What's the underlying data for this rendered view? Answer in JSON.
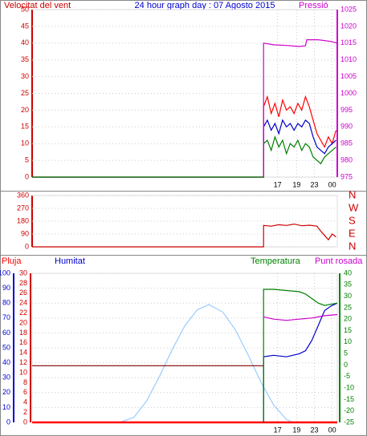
{
  "chart_data": [
    {
      "type": "line",
      "title": "24 hour graph day : 07 Agosto 2015",
      "y_label": "Velocitat del vent",
      "y2_label": "Pressió",
      "xlim": [
        0,
        24
      ],
      "xticks": [
        {
          "value": 19.3,
          "label": "17"
        },
        {
          "value": 20.8,
          "label": "19"
        },
        {
          "value": 22.2,
          "label": "23"
        },
        {
          "value": 23.6,
          "label": "00"
        }
      ],
      "ylim": [
        0,
        50
      ],
      "yticks": [
        0,
        5,
        10,
        15,
        20,
        25,
        30,
        35,
        40,
        45,
        50
      ],
      "ycolor": "#cc0000",
      "y2lim": [
        975,
        1025
      ],
      "y2ticks": [
        975,
        980,
        985,
        990,
        995,
        1000,
        1005,
        1010,
        1015,
        1020,
        1025
      ],
      "y2color": "#cc00cc",
      "grid": true,
      "series": [
        {
          "color": "#ff0000",
          "x": [
            0,
            18.2,
            18.2,
            18.5,
            18.8,
            19.1,
            19.4,
            19.7,
            20.0,
            20.3,
            20.6,
            20.9,
            21.2,
            21.5,
            21.8,
            22.1,
            22.4,
            22.7,
            23.0,
            23.3,
            23.6,
            23.9
          ],
          "values": [
            0,
            0,
            21,
            24,
            19,
            22,
            18,
            23,
            20,
            21,
            19,
            22,
            20,
            24,
            21,
            17,
            13,
            11,
            9,
            12,
            10,
            14
          ]
        },
        {
          "color": "#0000cc",
          "x": [
            0,
            18.2,
            18.2,
            18.5,
            18.8,
            19.1,
            19.4,
            19.7,
            20.0,
            20.3,
            20.6,
            20.9,
            21.2,
            21.5,
            21.8,
            22.1,
            22.4,
            22.7,
            23.0,
            23.3,
            23.6,
            23.9
          ],
          "values": [
            0,
            0,
            15,
            17,
            14,
            16,
            13,
            17,
            15,
            16,
            14,
            16,
            15,
            17,
            16,
            12,
            9,
            8,
            7,
            9,
            10,
            11
          ]
        },
        {
          "color": "#008000",
          "x": [
            0,
            18.2,
            18.2,
            18.5,
            18.8,
            19.1,
            19.4,
            19.7,
            20.0,
            20.3,
            20.6,
            20.9,
            21.2,
            21.5,
            21.8,
            22.1,
            22.4,
            22.7,
            23.0,
            23.3,
            23.6,
            23.9
          ],
          "values": [
            0,
            0,
            10,
            11,
            8,
            12,
            9,
            11,
            7,
            10,
            9,
            11,
            8,
            10,
            9,
            6,
            5,
            4,
            6,
            7,
            8,
            9
          ]
        },
        {
          "color": "#cc00cc",
          "axis": "y2",
          "x": [
            18.2,
            18.2,
            19,
            20,
            21,
            21.5,
            21.6,
            22.5,
            23.5,
            24
          ],
          "values": [
            975,
            1015,
            1014.5,
            1014.3,
            1014,
            1014.2,
            1016,
            1016,
            1015.5,
            1015
          ]
        }
      ]
    },
    {
      "type": "line",
      "xlim": [
        0,
        24
      ],
      "ylim": [
        0,
        360
      ],
      "yticks": [
        0,
        90,
        180,
        270,
        360
      ],
      "ycolor": "#cc0000",
      "y2lim": [
        0,
        360
      ],
      "y2ticks": [
        {
          "value": 0,
          "label": "N"
        },
        {
          "value": 90,
          "label": "E"
        },
        {
          "value": 180,
          "label": "S"
        },
        {
          "value": 270,
          "label": "W"
        },
        {
          "value": 360,
          "label": "N"
        }
      ],
      "y2color": "#cc0000",
      "grid": true,
      "series": [
        {
          "color": "#cc0000",
          "x": [
            0,
            18.2,
            18.2,
            18.8,
            19.4,
            20,
            20.6,
            21.2,
            21.8,
            22.4,
            22.7,
            23,
            23.3,
            23.6,
            23.9
          ],
          "values": [
            0,
            0,
            150,
            145,
            155,
            150,
            160,
            148,
            152,
            145,
            110,
            80,
            50,
            90,
            70
          ]
        }
      ]
    },
    {
      "type": "line",
      "xlim": [
        0,
        24
      ],
      "xticks": [
        {
          "value": 19.3,
          "label": "17"
        },
        {
          "value": 20.8,
          "label": "19"
        },
        {
          "value": 22.2,
          "label": "23"
        },
        {
          "value": 23.6,
          "label": "00"
        }
      ],
      "ylim": [
        0,
        100
      ],
      "yticks": [
        0,
        10,
        20,
        30,
        40,
        50,
        60,
        70,
        80,
        90,
        100
      ],
      "ycolor": "#0000cc",
      "y3lim": [
        0,
        30
      ],
      "y3ticks": [
        0,
        2,
        4,
        6,
        8,
        10,
        12,
        14,
        16,
        18,
        20,
        22,
        24,
        26,
        28,
        30
      ],
      "y3color": "#cc0000",
      "y2lim": [
        -25,
        40
      ],
      "y2ticks": [
        -25,
        -20,
        -15,
        -10,
        -5,
        0,
        5,
        10,
        15,
        20,
        25,
        30,
        35,
        40
      ],
      "y2color": "#008000",
      "grid": true,
      "series": [
        {
          "color": "#99ccff",
          "x": [
            6.9,
            8,
            9,
            10,
            11,
            12,
            13,
            13.9,
            15,
            16,
            17,
            18,
            19,
            20,
            20.5
          ],
          "values": [
            0,
            3.4,
            14.3,
            30.5,
            48.5,
            64.7,
            75.6,
            79,
            74,
            61.9,
            45,
            26.9,
            11.6,
            2,
            0
          ]
        },
        {
          "color": "#800000",
          "x": [
            0,
            18.2
          ],
          "values": [
            38,
            38
          ]
        },
        {
          "name": "Pluja",
          "color": "#ff0000",
          "axis": "y3",
          "x": [
            0,
            24
          ],
          "values": [
            0,
            0
          ]
        },
        {
          "name": "Humitat",
          "color": "#0000cc",
          "x": [
            18.2,
            18.2,
            19,
            20,
            21,
            21.5,
            22,
            22.5,
            23,
            23.5,
            24
          ],
          "values": [
            0,
            44,
            45,
            44,
            46,
            48,
            55,
            65,
            75,
            78,
            80
          ]
        },
        {
          "name": "Temperatura",
          "color": "#008000",
          "axis": "y2",
          "x": [
            18.2,
            18.2,
            19,
            20,
            21,
            21.5,
            22,
            22.5,
            23,
            24
          ],
          "values": [
            -25,
            33,
            33,
            32.5,
            32,
            31,
            29,
            27,
            26,
            27
          ]
        },
        {
          "name": "Punt rosada",
          "color": "#cc00cc",
          "axis": "y2",
          "x": [
            18.2,
            19,
            20,
            21,
            22,
            22.5,
            23,
            24
          ],
          "values": [
            21,
            20,
            19.5,
            20,
            20.5,
            21,
            21.5,
            22
          ]
        }
      ]
    }
  ]
}
